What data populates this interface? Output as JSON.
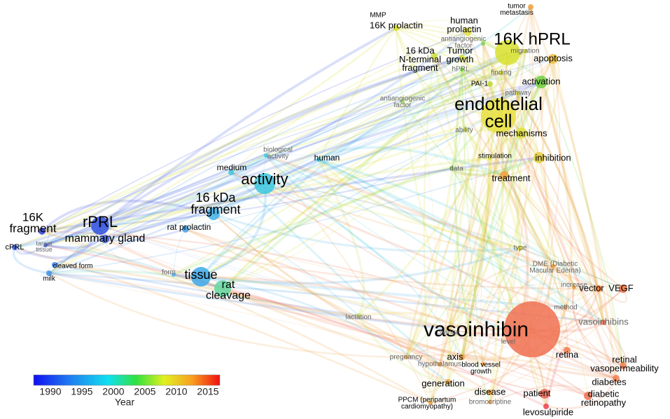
{
  "nodes": [
    {
      "lines": [
        "16K hPRL"
      ]
    },
    {
      "lines": [
        "endothelial",
        "cell"
      ]
    },
    {
      "lines": [
        "vasoinhibin"
      ]
    },
    {
      "lines": [
        "rPRL"
      ]
    },
    {
      "lines": [
        "activity"
      ]
    },
    {
      "lines": [
        "16 kDa",
        "fragment"
      ]
    },
    {
      "lines": [
        "16K",
        "fragment"
      ]
    },
    {
      "lines": [
        "mammary gland"
      ]
    },
    {
      "lines": [
        "tissue"
      ]
    },
    {
      "lines": [
        "rat",
        "cleavage"
      ]
    },
    {
      "lines": [
        "medium"
      ]
    },
    {
      "lines": [
        "biological",
        "activity"
      ]
    },
    {
      "lines": [
        "human"
      ]
    },
    {
      "lines": [
        "rat prolactin"
      ]
    },
    {
      "lines": [
        "cPRL"
      ]
    },
    {
      "lines": [
        "target",
        "tissue"
      ]
    },
    {
      "lines": [
        "cleaved form"
      ]
    },
    {
      "lines": [
        "milk"
      ]
    },
    {
      "lines": [
        "form"
      ]
    },
    {
      "lines": [
        "lactation"
      ]
    },
    {
      "lines": [
        "change"
      ]
    },
    {
      "lines": [
        "level"
      ]
    },
    {
      "lines": [
        "type"
      ]
    },
    {
      "lines": [
        "DME (Diabetic",
        "Macular Edema)"
      ]
    },
    {
      "lines": [
        "increase"
      ]
    },
    {
      "lines": [
        "vector"
      ]
    },
    {
      "lines": [
        "VEGF"
      ]
    },
    {
      "lines": [
        "method"
      ]
    },
    {
      "lines": [
        "vasoinhibins"
      ]
    },
    {
      "lines": [
        "retina"
      ]
    },
    {
      "lines": [
        "retinal",
        "vasopermeability"
      ]
    },
    {
      "lines": [
        "diabetes"
      ]
    },
    {
      "lines": [
        "diabetic",
        "retinopathy"
      ]
    },
    {
      "lines": [
        "patient"
      ]
    },
    {
      "lines": [
        "levosulpiride"
      ]
    },
    {
      "lines": [
        "disease"
      ]
    },
    {
      "lines": [
        "bromocriptine"
      ]
    },
    {
      "lines": [
        "PPCM (peripartum",
        "cardiomyopathy)"
      ]
    },
    {
      "lines": [
        "generation"
      ]
    },
    {
      "lines": [
        "axis"
      ]
    },
    {
      "lines": [
        "hypothalamus"
      ]
    },
    {
      "lines": [
        "blood vessel",
        "growth"
      ]
    },
    {
      "lines": [
        "pregnancy"
      ]
    },
    {
      "lines": [
        "treatment"
      ]
    },
    {
      "lines": [
        "stimulation"
      ]
    },
    {
      "lines": [
        "inhibition"
      ]
    },
    {
      "lines": [
        "mechanisms"
      ]
    },
    {
      "lines": [
        "ability"
      ]
    },
    {
      "lines": [
        "data"
      ]
    },
    {
      "lines": [
        "pathway"
      ]
    },
    {
      "lines": [
        "PAI-1"
      ]
    },
    {
      "lines": [
        "finding"
      ]
    },
    {
      "lines": [
        "activation"
      ]
    },
    {
      "lines": [
        "apoptosis"
      ]
    },
    {
      "lines": [
        "migration"
      ]
    },
    {
      "lines": [
        "tumor",
        "metastasis"
      ]
    },
    {
      "lines": [
        "human",
        "prolactin"
      ]
    },
    {
      "lines": [
        "MMP"
      ]
    },
    {
      "lines": [
        "16K prolactin"
      ]
    },
    {
      "lines": [
        "antiangiogenic",
        "factor"
      ]
    },
    {
      "lines": [
        "16 kDa",
        "N-terminal",
        "fragment"
      ]
    },
    {
      "lines": [
        "Tumor",
        "growth"
      ]
    },
    {
      "lines": [
        "hPRL"
      ]
    },
    {
      "lines": [
        "antiangiogenic",
        "factor"
      ]
    }
  ],
  "color_scale": {
    "ticks": [
      1990,
      1995,
      2000,
      2005,
      2010,
      2015
    ],
    "label": "Year"
  }
}
